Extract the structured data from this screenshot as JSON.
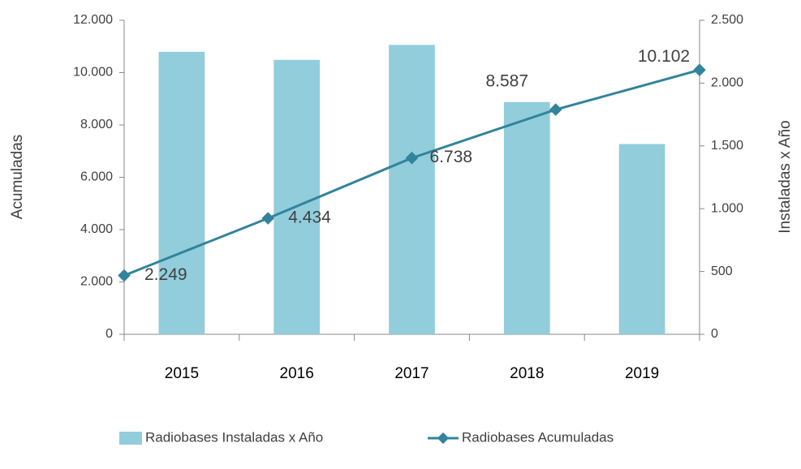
{
  "chart_data": {
    "type": "bar_line",
    "categories": [
      "2015",
      "2016",
      "2017",
      "2018",
      "2019"
    ],
    "ylabel": "Acumuladas",
    "y2label": "Instaladas x Año",
    "ylim": [
      0,
      12000
    ],
    "yticks": [
      {
        "value": 0,
        "label": "0"
      },
      {
        "value": 2000,
        "label": "2.000"
      },
      {
        "value": 4000,
        "label": "4.000"
      },
      {
        "value": 6000,
        "label": "6.000"
      },
      {
        "value": 8000,
        "label": "8.000"
      },
      {
        "value": 10000,
        "label": "10.000"
      },
      {
        "value": 12000,
        "label": "12.000"
      }
    ],
    "y2lim": [
      0,
      2500
    ],
    "y2ticks": [
      {
        "value": 0,
        "label": "0"
      },
      {
        "value": 500,
        "label": "500"
      },
      {
        "value": 1000,
        "label": "1.000"
      },
      {
        "value": 1500,
        "label": "1.500"
      },
      {
        "value": 2000,
        "label": "2.000"
      },
      {
        "value": 2500,
        "label": "2.500"
      }
    ],
    "series": [
      {
        "name": "Radiobases Instaladas x Año",
        "type": "bar",
        "axis": "y2",
        "color": "#92cddc",
        "values": [
          2249,
          2185,
          2304,
          1849,
          1515
        ]
      },
      {
        "name": "Radiobases Acumuladas",
        "type": "line",
        "color": "#31849b",
        "values": [
          2249,
          4434,
          6738,
          8587,
          10102
        ],
        "value_labels": [
          "2.249",
          "4.434",
          "6.738",
          "8.587",
          "10.102"
        ]
      }
    ]
  }
}
